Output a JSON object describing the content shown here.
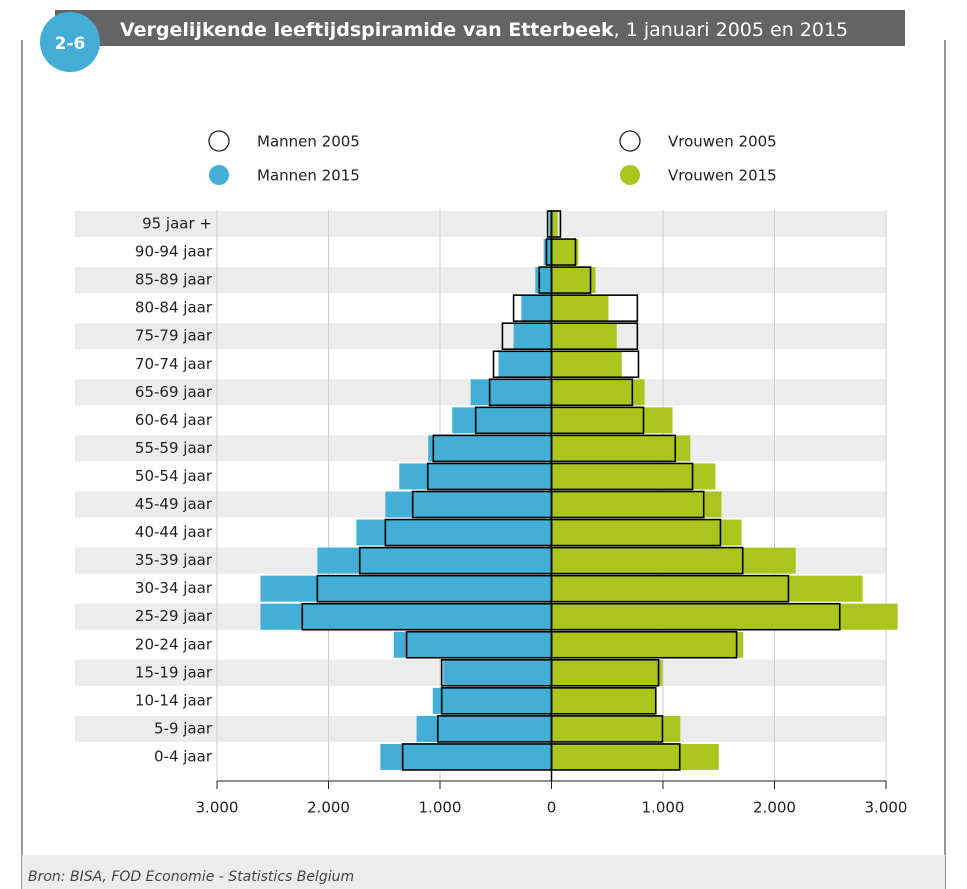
{
  "badge": "2-6",
  "source": "Bron: BISA, FOD Economie - Statistics Belgium",
  "chart_data": {
    "type": "pyramid",
    "title": {
      "main": "Vergelijkende leeftijdspiramide van Etterbeek",
      "rest": ", 1 januari 2005 en 2015"
    },
    "categories": [
      "95 jaar +",
      "90-94 jaar",
      "85-89 jaar",
      "80-84 jaar",
      "75-79 jaar",
      "70-74 jaar",
      "65-69 jaar",
      "60-64 jaar",
      "55-59 jaar",
      "50-54 jaar",
      "45-49 jaar",
      "40-44 jaar",
      "35-39 jaar",
      "30-34 jaar",
      "25-29 jaar",
      "20-24 jaar",
      "15-19 jaar",
      "10-14 jaar",
      "5-9 jaar",
      "0-4 jaar"
    ],
    "series": [
      {
        "name": "Mannen 2015",
        "side": "left",
        "style": "filled",
        "color": "#44afd6",
        "values": [
          20,
          70,
          145,
          270,
          340,
          475,
          725,
          890,
          1105,
          1365,
          1490,
          1750,
          2100,
          2610,
          2610,
          1415,
          970,
          1065,
          1210,
          1535
        ]
      },
      {
        "name": "Vrouwen 2015",
        "side": "right",
        "style": "filled",
        "color": "#abc41e",
        "values": [
          55,
          240,
          395,
          510,
          585,
          630,
          835,
          1085,
          1245,
          1470,
          1525,
          1705,
          2190,
          2790,
          3105,
          1720,
          995,
          940,
          1155,
          1500
        ]
      },
      {
        "name": "Mannen 2005",
        "side": "left",
        "style": "outline",
        "color": "#000000",
        "values": [
          35,
          45,
          110,
          340,
          440,
          520,
          555,
          680,
          1060,
          1110,
          1245,
          1490,
          1720,
          2100,
          2235,
          1300,
          985,
          985,
          1020,
          1335
        ]
      },
      {
        "name": "Vrouwen 2005",
        "side": "right",
        "style": "outline",
        "color": "#000000",
        "values": [
          80,
          215,
          350,
          770,
          770,
          780,
          725,
          825,
          1110,
          1265,
          1365,
          1515,
          1715,
          2125,
          2585,
          1660,
          960,
          935,
          995,
          1150
        ]
      }
    ],
    "xlim": [
      -3000,
      3000
    ],
    "xticks": [
      {
        "value": -3000,
        "label": "3.000"
      },
      {
        "value": -2000,
        "label": "2.000"
      },
      {
        "value": -1000,
        "label": "1.000"
      },
      0,
      {
        "value": 1000,
        "label": "1.000"
      },
      {
        "value": 2000,
        "label": "2.000"
      },
      {
        "value": 3000,
        "label": "3.000"
      }
    ],
    "grid": true
  }
}
